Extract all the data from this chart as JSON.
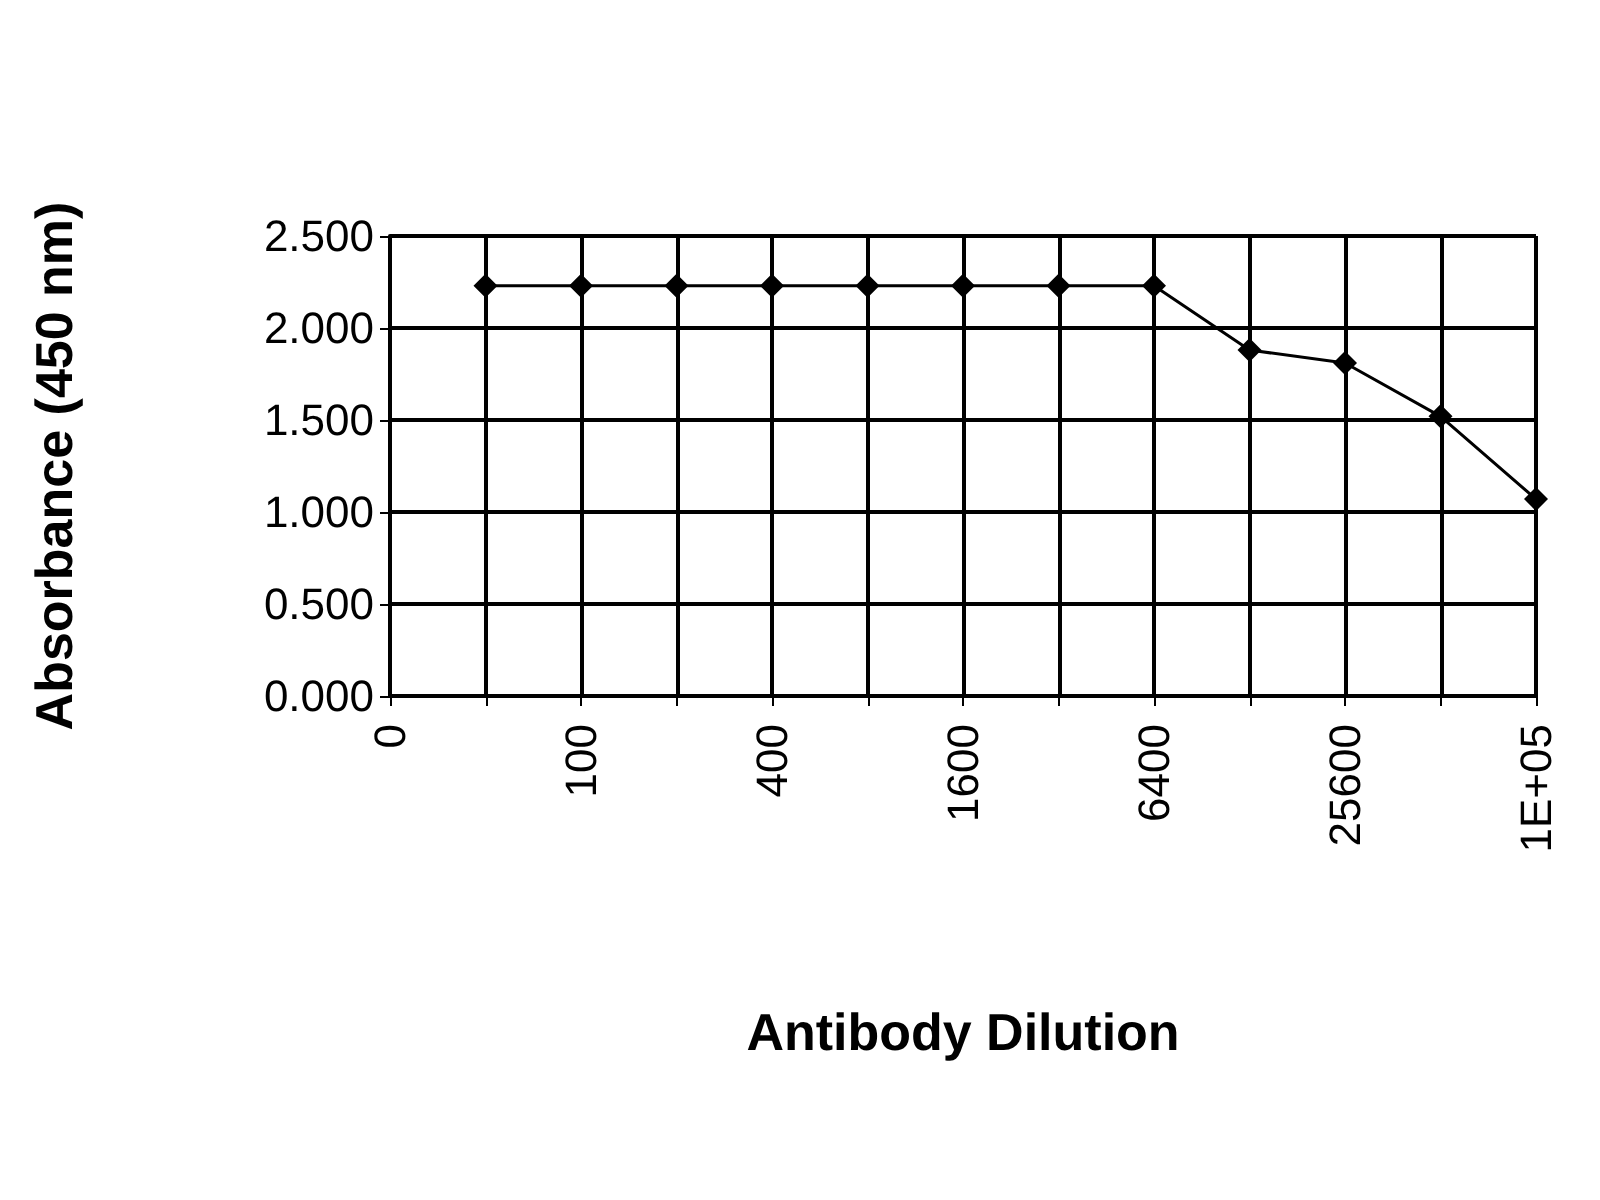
{
  "chart_data": {
    "type": "line",
    "xlabel": "Antibody Dilution",
    "ylabel": "Absorbance (450 nm)",
    "categories": [
      "0",
      null,
      "100",
      null,
      "400",
      null,
      "1600",
      null,
      "6400",
      null,
      "25600",
      null,
      "1E+05"
    ],
    "series": [
      {
        "color": "#000000",
        "values": [
          null,
          2.23,
          2.23,
          2.23,
          2.23,
          2.23,
          2.23,
          2.23,
          2.23,
          1.88,
          1.81,
          1.52,
          1.07
        ]
      }
    ],
    "ylim": [
      0,
      2.5
    ],
    "yticks": [
      {
        "value": 0,
        "label": "0.000"
      },
      {
        "value": 0.5,
        "label": "0.500"
      },
      {
        "value": 1,
        "label": "1.000"
      },
      {
        "value": 1.5,
        "label": "1.500"
      },
      {
        "value": 2,
        "label": "2.000"
      },
      {
        "value": 2.5,
        "label": "2.500"
      }
    ],
    "grid": true,
    "marker": "diamond",
    "line_style": "solid"
  }
}
